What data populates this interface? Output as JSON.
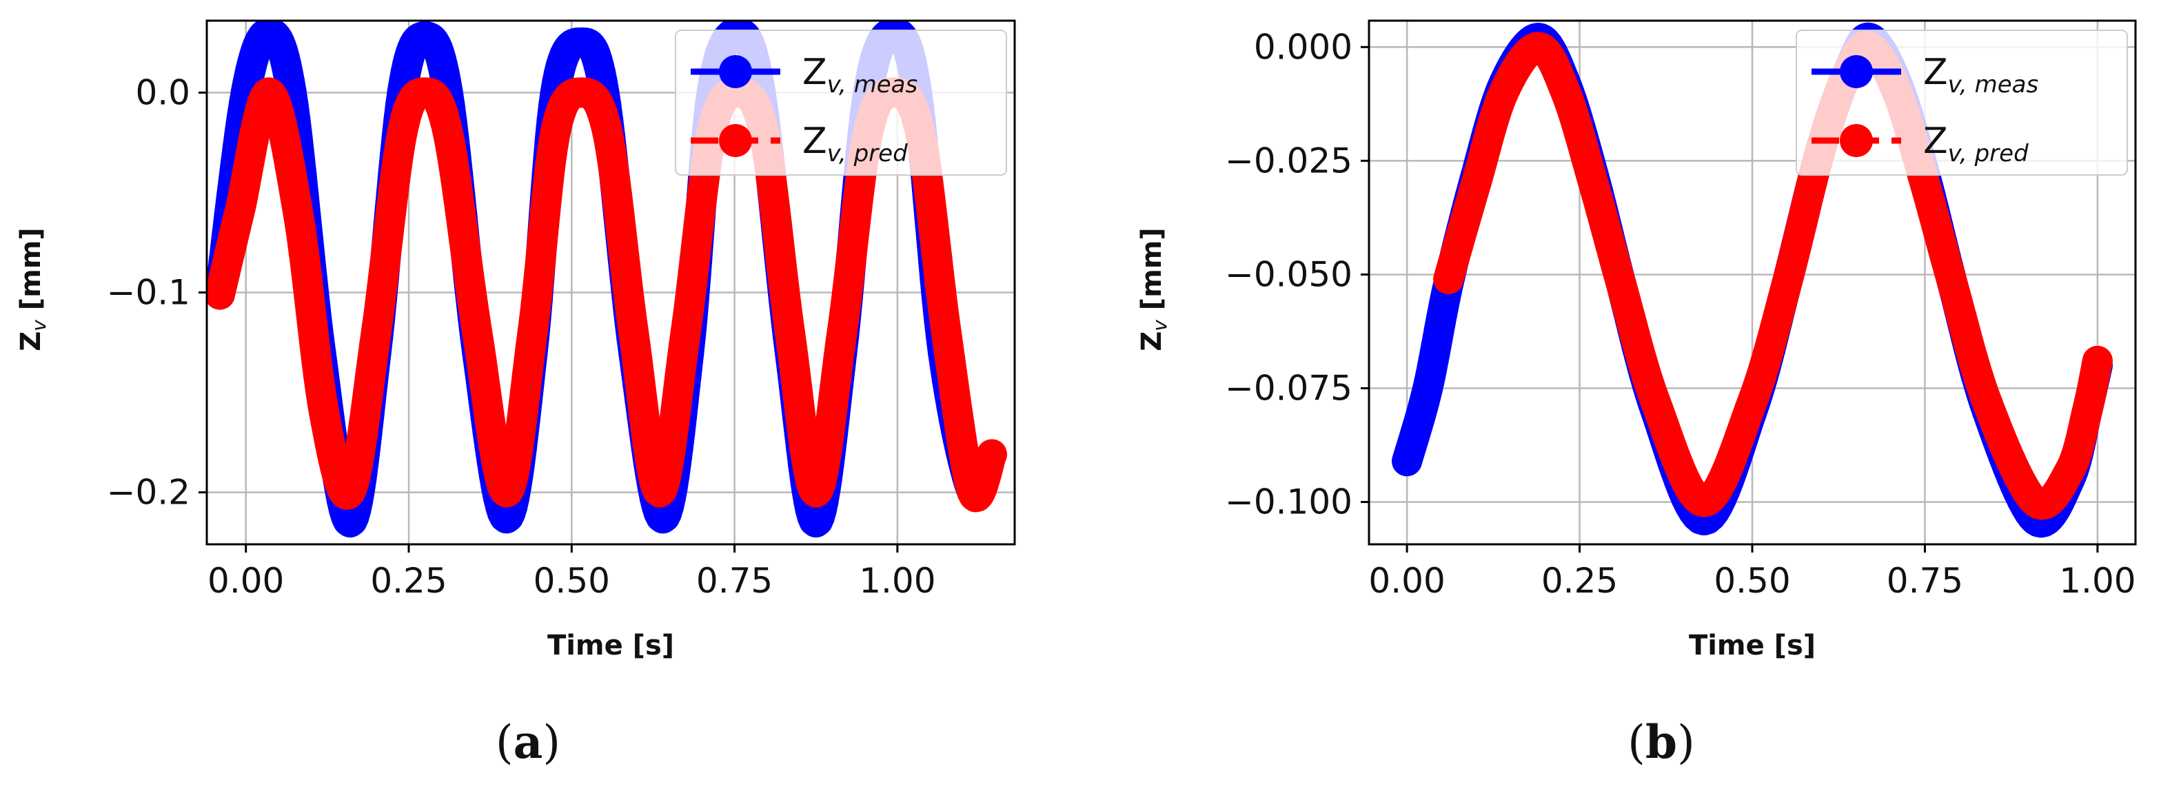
{
  "chart_data": [
    {
      "type": "scatter",
      "panel_label": "a",
      "xlabel": "Time [s]",
      "ylabel_main": "Z",
      "ylabel_sub": "v",
      "ylabel_unit": " [mm]",
      "xlim": [
        -0.06,
        1.18
      ],
      "ylim": [
        -0.226,
        0.036
      ],
      "xticks": [
        0.0,
        0.25,
        0.5,
        0.75,
        1.0
      ],
      "xtick_labels": [
        "0.00",
        "0.25",
        "0.50",
        "0.75",
        "1.00"
      ],
      "yticks": [
        0.0,
        -0.1,
        -0.2
      ],
      "ytick_labels": [
        "0.0",
        "−0.1",
        "−0.2"
      ],
      "grid": true,
      "legend_position": "top-right",
      "series": [
        {
          "name": "Z",
          "name_sub": "v, meas",
          "color": "#0000ff",
          "linestyle": "solid",
          "x": [
            -0.04,
            0.0,
            0.035,
            0.07,
            0.115,
            0.16,
            0.2,
            0.24,
            0.275,
            0.31,
            0.355,
            0.4,
            0.44,
            0.475,
            0.515,
            0.55,
            0.595,
            0.64,
            0.68,
            0.715,
            0.755,
            0.79,
            0.835,
            0.875,
            0.915,
            0.955,
            0.995,
            1.03,
            1.07,
            1.115,
            1.14
          ],
          "y": [
            -0.101,
            0.0,
            0.03,
            0.0,
            -0.13,
            -0.215,
            -0.13,
            0.0,
            0.028,
            0.0,
            -0.13,
            -0.213,
            -0.13,
            0.0,
            0.025,
            0.0,
            -0.13,
            -0.213,
            -0.13,
            0.0,
            0.03,
            0.0,
            -0.13,
            -0.215,
            -0.13,
            0.0,
            0.03,
            0.0,
            -0.13,
            -0.2,
            -0.183
          ]
        },
        {
          "name": "Z",
          "name_sub": "v, pred",
          "color": "#ff0000",
          "linestyle": "dashed",
          "x": [
            -0.04,
            -0.01,
            0.035,
            0.08,
            0.12,
            0.16,
            0.2,
            0.24,
            0.275,
            0.31,
            0.355,
            0.4,
            0.44,
            0.475,
            0.515,
            0.555,
            0.595,
            0.635,
            0.675,
            0.715,
            0.755,
            0.795,
            0.835,
            0.875,
            0.915,
            0.955,
            0.995,
            1.035,
            1.075,
            1.115,
            1.145
          ],
          "y": [
            -0.101,
            -0.06,
            0.0,
            -0.06,
            -0.16,
            -0.2,
            -0.12,
            -0.02,
            0.0,
            -0.02,
            -0.12,
            -0.2,
            -0.12,
            -0.02,
            0.0,
            -0.02,
            -0.12,
            -0.2,
            -0.12,
            -0.02,
            0.0,
            -0.02,
            -0.12,
            -0.2,
            -0.12,
            -0.02,
            0.0,
            -0.02,
            -0.12,
            -0.2,
            -0.181
          ]
        }
      ]
    },
    {
      "type": "scatter",
      "panel_label": "b",
      "xlabel": "Time [s]",
      "ylabel_main": "Z",
      "ylabel_sub": "v",
      "ylabel_unit": " [mm]",
      "xlim": [
        -0.055,
        1.055
      ],
      "ylim": [
        -0.1093,
        0.0058
      ],
      "xticks": [
        0.0,
        0.25,
        0.5,
        0.75,
        1.0
      ],
      "xtick_labels": [
        "0.00",
        "0.25",
        "0.50",
        "0.75",
        "1.00"
      ],
      "yticks": [
        0.0,
        -0.025,
        -0.05,
        -0.075,
        -0.1
      ],
      "ytick_labels": [
        "0.000",
        "−0.025",
        "−0.050",
        "−0.075",
        "−0.100"
      ],
      "grid": true,
      "legend_position": "top-right",
      "series": [
        {
          "name": "Z",
          "name_sub": "v, meas",
          "color": "#0000ff",
          "linestyle": "solid",
          "x": [
            0.0,
            0.03,
            0.06,
            0.1,
            0.14,
            0.19,
            0.23,
            0.27,
            0.31,
            0.36,
            0.43,
            0.5,
            0.55,
            0.6,
            0.64,
            0.67,
            0.71,
            0.75,
            0.79,
            0.84,
            0.91,
            0.96,
            0.985,
            1.0
          ],
          "y": [
            -0.091,
            -0.075,
            -0.052,
            -0.028,
            -0.008,
            0.002,
            -0.008,
            -0.028,
            -0.052,
            -0.08,
            -0.104,
            -0.08,
            -0.052,
            -0.022,
            -0.005,
            0.002,
            -0.008,
            -0.028,
            -0.052,
            -0.08,
            -0.104,
            -0.095,
            -0.08,
            -0.07
          ]
        },
        {
          "name": "Z",
          "name_sub": "v, pred",
          "color": "#ff0000",
          "linestyle": "dashed",
          "x": [
            0.06,
            0.1,
            0.14,
            0.19,
            0.23,
            0.27,
            0.31,
            0.36,
            0.43,
            0.5,
            0.55,
            0.6,
            0.64,
            0.67,
            0.71,
            0.75,
            0.79,
            0.84,
            0.91,
            0.96,
            0.985,
            1.0
          ],
          "y": [
            -0.051,
            -0.03,
            -0.01,
            0.0,
            -0.01,
            -0.03,
            -0.052,
            -0.078,
            -0.1,
            -0.078,
            -0.052,
            -0.022,
            -0.005,
            0.0,
            -0.01,
            -0.03,
            -0.052,
            -0.078,
            -0.1,
            -0.093,
            -0.08,
            -0.069
          ]
        }
      ]
    }
  ]
}
